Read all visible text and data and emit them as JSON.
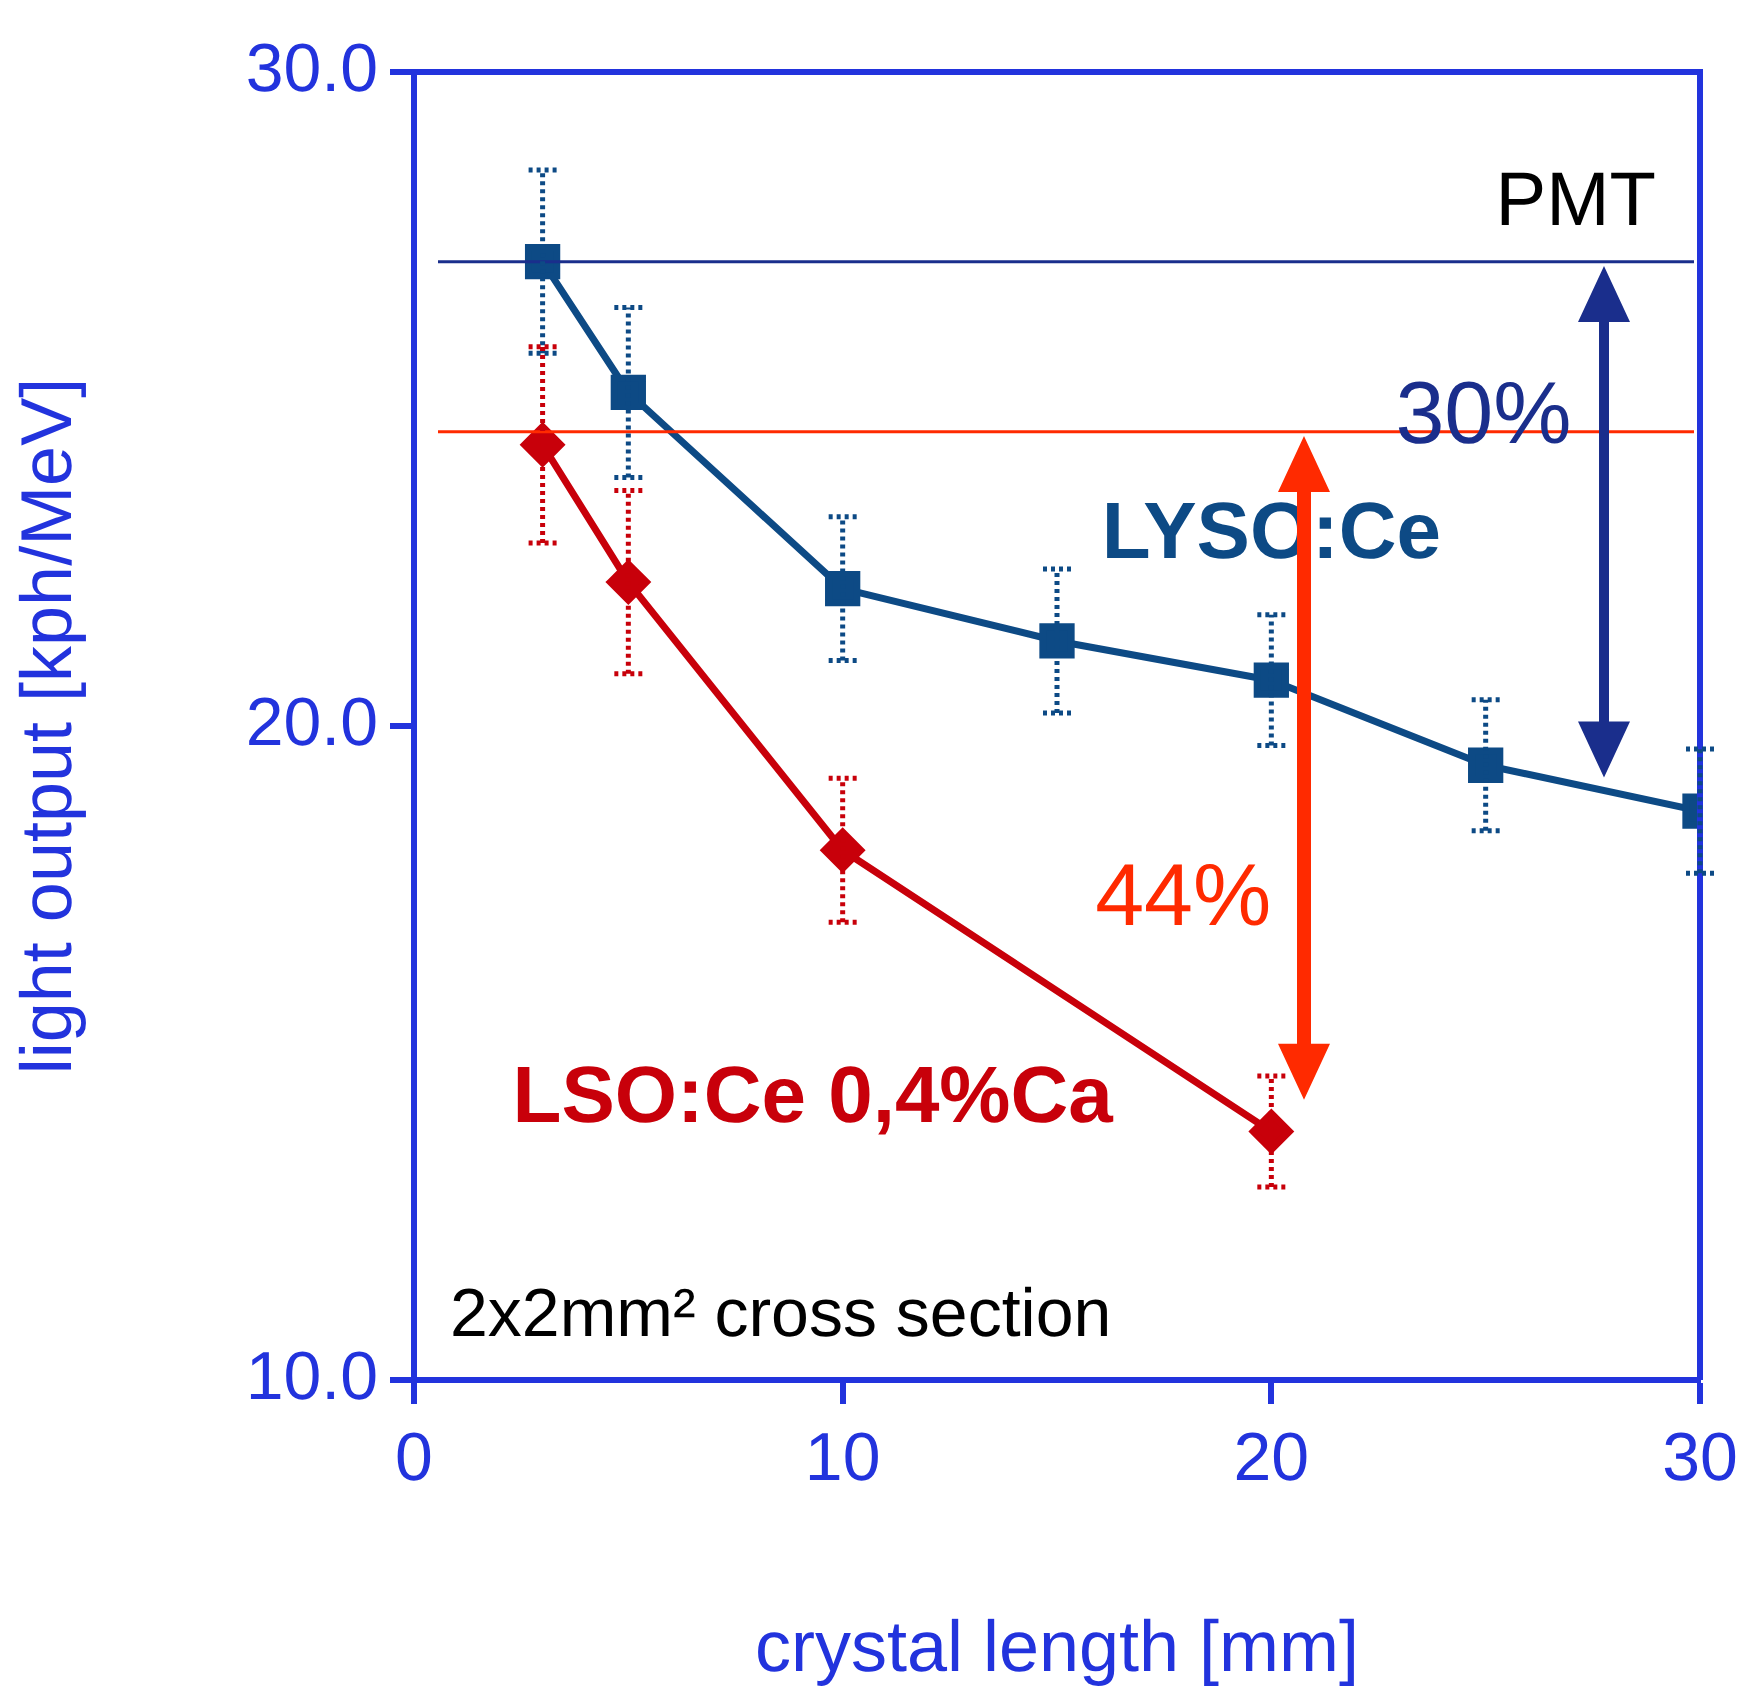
{
  "chart_data": {
    "type": "line",
    "xlabel": "crystal length [mm]",
    "ylabel": "light output [kph/MeV]",
    "xlim": [
      0,
      30
    ],
    "xticks": [
      0,
      10,
      20,
      30
    ],
    "ylim": [
      10,
      30
    ],
    "yticks": [
      {
        "value": 10,
        "label": "10.0"
      },
      {
        "value": 20,
        "label": "20.0"
      },
      {
        "value": 30,
        "label": "30.0"
      }
    ],
    "grid": false,
    "legend": false,
    "series": [
      {
        "name": "LYSO:Ce",
        "color": "#0d4a85",
        "marker": "square",
        "x": [
          3,
          5,
          10,
          15,
          20,
          25,
          30
        ],
        "values": [
          27.1,
          25.1,
          22.1,
          21.3,
          20.7,
          19.4,
          18.7
        ],
        "errors": [
          1.4,
          1.3,
          1.1,
          1.1,
          1.0,
          1.0,
          0.95
        ]
      },
      {
        "name": "LSO:Ce 0,4%Ca",
        "color": "#c8000a",
        "marker": "diamond",
        "x": [
          3,
          5,
          10,
          20
        ],
        "values": [
          24.3,
          22.2,
          18.1,
          13.8
        ],
        "errors": [
          1.5,
          1.4,
          1.1,
          0.85
        ]
      }
    ],
    "ref_lines": [
      {
        "axis": "y",
        "value": 27.1,
        "label": "PMT",
        "color": "#1a2e8c"
      },
      {
        "axis": "y",
        "value": 24.5,
        "label": null,
        "color": "#ff2a00"
      }
    ],
    "annotations": [
      "30%",
      "44%",
      "2x2mm² cross section"
    ]
  }
}
